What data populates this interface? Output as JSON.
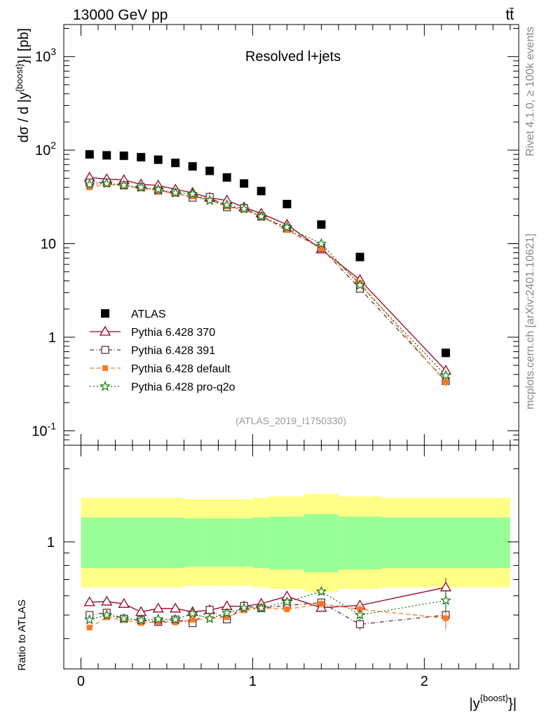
{
  "header": {
    "energy_label": "13000 GeV pp",
    "process_label": "tt̄",
    "main_title": "Resolved l+jets",
    "analysis_id": "(ATLAS_2019_I1750330)",
    "side_label_rivet": "Rivet 4.1.0, ≥ 100k events",
    "side_label_site": "mcplots.cern.ch [arXiv:2401.10621]"
  },
  "chart_data": [
    {
      "panel": "main",
      "type": "scatter",
      "ylabel": "dσ / d |y^{boost}| [pb]",
      "yscale": "log",
      "ylim": [
        0.07,
        2200
      ],
      "xlim": [
        -0.1,
        2.55
      ],
      "ytick_labels": [
        "10^{-1}",
        "1",
        "10",
        "10^{2}",
        "10^{3}"
      ],
      "legend_position": "center-left",
      "x": [
        0.05,
        0.15,
        0.25,
        0.35,
        0.45,
        0.55,
        0.65,
        0.75,
        0.85,
        0.95,
        1.05,
        1.2,
        1.4,
        1.625,
        2.125
      ],
      "series": [
        {
          "name": "ATLAS",
          "color": "#000000",
          "marker": "square",
          "line": "none",
          "values": [
            90,
            88,
            87,
            84,
            79,
            73,
            67,
            60,
            51,
            44,
            36.5,
            26.5,
            16,
            7.2,
            0.68
          ]
        },
        {
          "name": "Pythia 6.428 370",
          "color": "#990022",
          "marker": "triangle-open",
          "line": "solid",
          "values": [
            51,
            49,
            48,
            43,
            42,
            38,
            35,
            31,
            29,
            24.5,
            21,
            16,
            8.7,
            4.1,
            0.44
          ],
          "errors": [
            1.5,
            1.4,
            1.4,
            1.3,
            1.3,
            1.2,
            1.1,
            1.0,
            0.9,
            0.8,
            0.7,
            0.5,
            0.3,
            0.15,
            0.04
          ]
        },
        {
          "name": "Pythia 6.428 391",
          "color": "#663344",
          "marker": "square-open",
          "line": "dashdot",
          "values": [
            45,
            45,
            42,
            40,
            37,
            35,
            31,
            31.5,
            24.5,
            24,
            19.5,
            14.5,
            9,
            3.3,
            0.34
          ],
          "errors": [
            1.4,
            1.3,
            1.3,
            1.2,
            1.2,
            1.1,
            1.0,
            1.0,
            0.8,
            0.8,
            0.6,
            0.5,
            0.3,
            0.13,
            0.03
          ]
        },
        {
          "name": "Pythia 6.428 default",
          "color": "#ff7722",
          "marker": "square-filled",
          "line": "dashed",
          "values": [
            40,
            43,
            41.5,
            39,
            37,
            34,
            32,
            29,
            25,
            23,
            19.5,
            14,
            8.9,
            3.8,
            0.33
          ],
          "errors": [
            1.3,
            1.3,
            1.3,
            1.2,
            1.2,
            1.1,
            1.0,
            0.9,
            0.8,
            0.8,
            0.6,
            0.5,
            0.3,
            0.14,
            0.03
          ]
        },
        {
          "name": "Pythia 6.428 pro-q2o",
          "color": "#117711",
          "marker": "star-open",
          "line": "dotted",
          "values": [
            43,
            44,
            42,
            40,
            38,
            35,
            34,
            29,
            26,
            23.5,
            19.5,
            15,
            10,
            3.6,
            0.39
          ],
          "errors": [
            1.4,
            1.3,
            1.3,
            1.2,
            1.2,
            1.1,
            1.0,
            0.9,
            0.8,
            0.8,
            0.6,
            0.5,
            0.3,
            0.14,
            0.04
          ]
        }
      ]
    },
    {
      "panel": "ratio",
      "type": "line",
      "ylabel": "Ratio to ATLAS",
      "xlabel": "|y^{boost}|",
      "yscale": "log",
      "ylim": [
        0.3,
        2.5
      ],
      "xlim": [
        -0.1,
        2.55
      ],
      "xtick_labels": [
        "0",
        "1",
        "2"
      ],
      "ytick_labels": [
        "1"
      ],
      "bands": {
        "bin_edges": [
          0,
          0.1,
          0.2,
          0.3,
          0.4,
          0.5,
          0.6,
          0.7,
          0.8,
          0.9,
          1.0,
          1.1,
          1.3,
          1.5,
          1.75,
          2.5
        ],
        "inner_low": [
          0.78,
          0.78,
          0.78,
          0.78,
          0.78,
          0.78,
          0.79,
          0.79,
          0.79,
          0.79,
          0.78,
          0.77,
          0.75,
          0.77,
          0.78
        ],
        "inner_high": [
          1.26,
          1.26,
          1.26,
          1.26,
          1.26,
          1.26,
          1.25,
          1.25,
          1.25,
          1.25,
          1.26,
          1.27,
          1.3,
          1.27,
          1.26
        ],
        "outer_low": [
          0.65,
          0.65,
          0.65,
          0.65,
          0.65,
          0.65,
          0.66,
          0.66,
          0.66,
          0.66,
          0.65,
          0.64,
          0.62,
          0.64,
          0.65
        ],
        "outer_high": [
          1.52,
          1.52,
          1.52,
          1.52,
          1.52,
          1.52,
          1.5,
          1.5,
          1.5,
          1.5,
          1.52,
          1.54,
          1.58,
          1.54,
          1.52
        ],
        "inner_color": "#99ff99",
        "outer_color": "#ffff88"
      },
      "series": [
        {
          "name": "Pythia 6.428 370",
          "color": "#990022",
          "values": [
            0.565,
            0.568,
            0.556,
            0.515,
            0.532,
            0.532,
            0.515,
            0.524,
            0.544,
            0.543,
            0.557,
            0.597,
            0.536,
            0.548,
            0.65
          ],
          "errors": [
            0.01,
            0.01,
            0.01,
            0.01,
            0.01,
            0.01,
            0.01,
            0.01,
            0.012,
            0.012,
            0.013,
            0.015,
            0.02,
            0.025,
            0.06
          ]
        },
        {
          "name": "Pythia 6.428 391",
          "color": "#663344",
          "values": [
            0.5,
            0.511,
            0.483,
            0.476,
            0.468,
            0.479,
            0.463,
            0.525,
            0.48,
            0.545,
            0.534,
            0.547,
            0.563,
            0.458,
            0.5
          ],
          "errors": [
            0.01,
            0.01,
            0.01,
            0.01,
            0.01,
            0.01,
            0.01,
            0.01,
            0.012,
            0.012,
            0.013,
            0.015,
            0.02,
            0.025,
            0.05
          ]
        },
        {
          "name": "Pythia 6.428 default",
          "color": "#ff7722",
          "values": [
            0.444,
            0.489,
            0.477,
            0.464,
            0.468,
            0.466,
            0.478,
            0.483,
            0.49,
            0.523,
            0.534,
            0.528,
            0.556,
            0.528,
            0.485
          ],
          "errors": [
            0.012,
            0.012,
            0.012,
            0.012,
            0.012,
            0.012,
            0.012,
            0.012,
            0.013,
            0.013,
            0.015,
            0.016,
            0.02,
            0.025,
            0.05
          ]
        },
        {
          "name": "Pythia 6.428 pro-q2o",
          "color": "#117711",
          "values": [
            0.478,
            0.5,
            0.483,
            0.476,
            0.481,
            0.479,
            0.507,
            0.483,
            0.51,
            0.534,
            0.534,
            0.566,
            0.625,
            0.5,
            0.574
          ],
          "errors": [
            0.01,
            0.01,
            0.01,
            0.01,
            0.01,
            0.01,
            0.01,
            0.01,
            0.012,
            0.012,
            0.013,
            0.015,
            0.02,
            0.025,
            0.06
          ]
        }
      ]
    }
  ]
}
